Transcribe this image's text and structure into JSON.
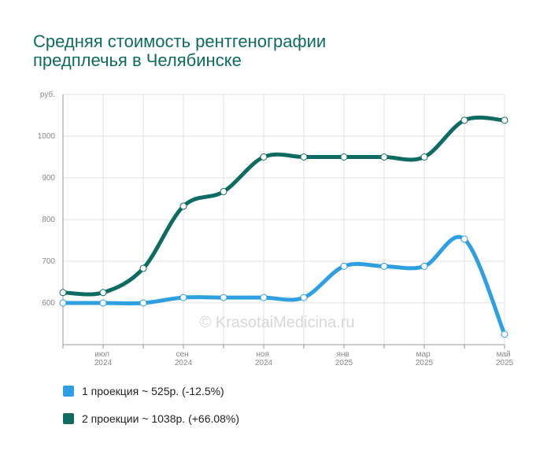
{
  "chart_data": {
    "type": "line",
    "title": [
      "Средняя стоимость рентгенографии",
      "предплечья в Челябинске"
    ],
    "watermark": "© KrasotaiMedicina.ru",
    "categories": [
      null,
      "июл 2024",
      null,
      "сен 2024",
      null,
      "ноя 2024",
      null,
      "янв 2025",
      null,
      "мар 2025",
      null,
      "май 2025"
    ],
    "series": [
      {
        "name": "1 проекция ~ 525р. (-12.5%)",
        "color": "#2e9fe0",
        "values": [
          600,
          600,
          600,
          613,
          613,
          613,
          613,
          688,
          688,
          688,
          753,
          525
        ]
      },
      {
        "name": "2 проекции ~ 1038р. (+66.08%)",
        "color": "#0d6b62",
        "values": [
          625,
          625,
          683,
          832,
          867,
          950,
          950,
          950,
          950,
          950,
          1038,
          1038
        ]
      }
    ],
    "ylim": [
      500,
      1100
    ],
    "yticks": [
      600,
      700,
      800,
      900,
      1000,
      {
        "value": 1100,
        "label": "руб."
      }
    ],
    "grid": true
  }
}
